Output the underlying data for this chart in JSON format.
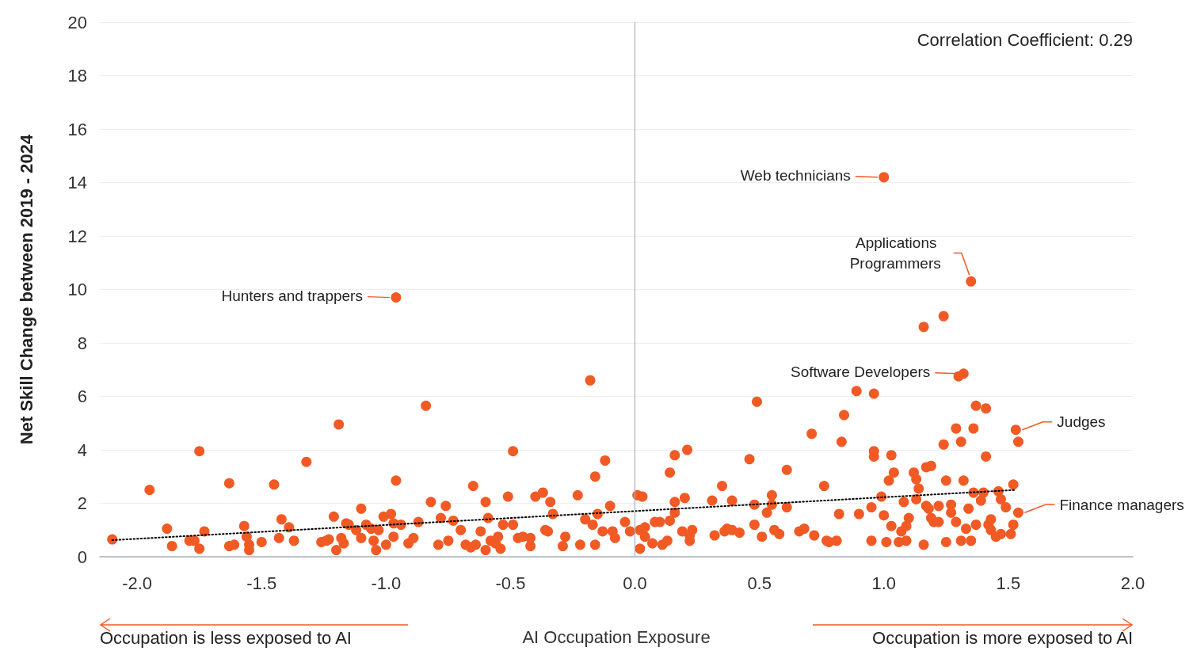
{
  "chart_data": {
    "type": "scatter",
    "xlabel": "AI Occupation Exposure",
    "ylabel": "Net Skill Change between 2019 - 2024",
    "xlim": [
      -2.15,
      2.0
    ],
    "xticks": [
      {
        "value": -2,
        "label": "-2.0"
      },
      {
        "value": -1.5,
        "label": "-1.5"
      },
      {
        "value": -1,
        "label": "-1.0"
      },
      {
        "value": -0.5,
        "label": "-0.5"
      },
      {
        "value": 0,
        "label": "0.0"
      },
      {
        "value": 0.5,
        "label": "0.5"
      },
      {
        "value": 1,
        "label": "1.0"
      },
      {
        "value": 1.5,
        "label": "1.5"
      },
      {
        "value": 2,
        "label": "2.0"
      }
    ],
    "ylim": [
      0,
      20
    ],
    "yticks": [
      0,
      2,
      4,
      6,
      8,
      10,
      12,
      14,
      16,
      18,
      20
    ],
    "grid": "y",
    "marker": "circle",
    "ref_lines": [
      {
        "axis": "x",
        "value": 0,
        "color": "#a9b0bd"
      }
    ],
    "annotations": [
      "Correlation Coefficient: 0.29",
      "Occupation is less exposed to AI",
      "Occupation is more exposed to AI",
      {
        "text": "Hunters and trappers",
        "x": -0.96,
        "y": 9.7
      },
      {
        "text": "Web technicians",
        "x": 1.0,
        "y": 14.2
      },
      {
        "text": "Applications Programmers",
        "x": 1.35,
        "y": 10.3
      },
      {
        "text": "Software Developers",
        "x": 1.32,
        "y": 6.85
      },
      {
        "text": "Judges",
        "x": 1.53,
        "y": 4.75
      },
      {
        "text": "Finance managers",
        "x": 1.54,
        "y": 1.65
      }
    ],
    "series": [
      {
        "type": "scatter",
        "color": "#f15a24",
        "x": [
          -2.1,
          -1.95,
          -1.88,
          -1.86,
          -1.79,
          -1.77,
          -1.75,
          -1.75,
          -1.73,
          -1.63,
          -1.63,
          -1.61,
          -1.57,
          -1.56,
          -1.55,
          -1.55,
          -1.5,
          -1.45,
          -1.43,
          -1.42,
          -1.39,
          -1.37,
          -1.32,
          -1.26,
          -1.24,
          -1.23,
          -1.21,
          -1.2,
          -1.19,
          -1.18,
          -1.17,
          -1.16,
          -1.15,
          -1.12,
          -1.1,
          -1.1,
          -1.08,
          -1.06,
          -1.05,
          -1.04,
          -1.03,
          -1.01,
          -1.0,
          -0.98,
          -0.97,
          -0.97,
          -0.96,
          -0.96,
          -0.94,
          -0.91,
          -0.89,
          -0.87,
          -0.84,
          -0.82,
          -0.79,
          -0.78,
          -0.76,
          -0.75,
          -0.73,
          -0.7,
          -0.68,
          -0.66,
          -0.65,
          -0.64,
          -0.62,
          -0.6,
          -0.6,
          -0.59,
          -0.58,
          -0.56,
          -0.55,
          -0.54,
          -0.53,
          -0.51,
          -0.49,
          -0.49,
          -0.47,
          -0.45,
          -0.42,
          -0.42,
          -0.4,
          -0.37,
          -0.36,
          -0.35,
          -0.34,
          -0.33,
          -0.29,
          -0.28,
          -0.23,
          -0.22,
          -0.2,
          -0.18,
          -0.17,
          -0.16,
          -0.16,
          -0.15,
          -0.13,
          -0.12,
          -0.1,
          -0.09,
          -0.08,
          -0.04,
          -0.02,
          0.01,
          0.02,
          0.02,
          0.03,
          0.04,
          0.04,
          0.07,
          0.08,
          0.1,
          0.11,
          0.13,
          0.14,
          0.14,
          0.16,
          0.16,
          0.16,
          0.19,
          0.2,
          0.21,
          0.22,
          0.22,
          0.23,
          0.31,
          0.32,
          0.35,
          0.36,
          0.37,
          0.39,
          0.39,
          0.42,
          0.46,
          0.48,
          0.48,
          0.49,
          0.51,
          0.53,
          0.55,
          0.55,
          0.56,
          0.58,
          0.61,
          0.61,
          0.66,
          0.68,
          0.71,
          0.72,
          0.76,
          0.77,
          0.78,
          0.81,
          0.82,
          0.83,
          0.84,
          0.89,
          0.9,
          0.95,
          0.95,
          0.96,
          0.96,
          0.96,
          0.99,
          1.0,
          1.0,
          1.01,
          1.02,
          1.03,
          1.03,
          1.04,
          1.06,
          1.07,
          1.08,
          1.09,
          1.09,
          1.1,
          1.12,
          1.13,
          1.13,
          1.14,
          1.16,
          1.16,
          1.17,
          1.17,
          1.18,
          1.19,
          1.19,
          1.2,
          1.22,
          1.22,
          1.24,
          1.24,
          1.25,
          1.25,
          1.27,
          1.27,
          1.29,
          1.29,
          1.3,
          1.31,
          1.31,
          1.32,
          1.32,
          1.33,
          1.34,
          1.35,
          1.35,
          1.36,
          1.36,
          1.37,
          1.37,
          1.39,
          1.4,
          1.41,
          1.41,
          1.42,
          1.43,
          1.43,
          1.45,
          1.46,
          1.47,
          1.47,
          1.49,
          1.51,
          1.52,
          1.52,
          1.53,
          1.54,
          1.54
        ],
        "values": [
          0.65,
          2.5,
          1.05,
          0.4,
          0.6,
          0.6,
          3.95,
          0.3,
          0.95,
          2.75,
          0.4,
          0.45,
          1.15,
          0.75,
          0.45,
          0.25,
          0.55,
          2.7,
          0.7,
          1.4,
          1.1,
          0.6,
          3.55,
          0.55,
          0.6,
          0.65,
          1.5,
          0.25,
          4.95,
          0.7,
          0.5,
          1.25,
          1.2,
          1.0,
          1.8,
          0.7,
          1.2,
          1.05,
          0.6,
          0.25,
          1.0,
          1.5,
          0.45,
          1.6,
          0.75,
          1.25,
          2.85,
          9.7,
          1.2,
          0.5,
          0.7,
          1.3,
          5.65,
          2.05,
          0.45,
          1.45,
          1.9,
          0.6,
          1.35,
          1.0,
          0.45,
          0.35,
          2.65,
          0.45,
          0.95,
          0.25,
          2.05,
          1.45,
          0.6,
          0.5,
          0.75,
          0.3,
          1.2,
          2.25,
          3.95,
          1.2,
          0.7,
          0.75,
          0.4,
          0.7,
          2.25,
          2.4,
          1.0,
          0.95,
          2.05,
          1.6,
          0.4,
          0.75,
          2.3,
          0.45,
          1.4,
          6.6,
          1.2,
          3.0,
          0.45,
          1.6,
          0.95,
          3.6,
          1.9,
          0.95,
          0.7,
          1.3,
          0.95,
          2.3,
          0.3,
          1.0,
          2.25,
          0.75,
          1.1,
          0.5,
          1.3,
          1.3,
          0.45,
          0.6,
          3.15,
          1.35,
          1.65,
          2.05,
          3.8,
          0.95,
          2.2,
          4.0,
          0.8,
          0.6,
          1.0,
          2.1,
          0.8,
          2.65,
          0.95,
          1.05,
          2.1,
          1.0,
          0.9,
          3.65,
          1.95,
          1.2,
          5.8,
          0.75,
          1.65,
          1.95,
          2.3,
          1.0,
          0.85,
          3.25,
          1.85,
          0.95,
          1.05,
          4.6,
          0.8,
          2.65,
          0.6,
          0.55,
          0.6,
          1.6,
          4.3,
          5.3,
          6.2,
          1.6,
          1.85,
          0.6,
          3.95,
          6.1,
          3.75,
          2.25,
          14.2,
          1.55,
          0.55,
          2.85,
          3.8,
          1.15,
          3.15,
          0.55,
          0.95,
          2.05,
          0.6,
          1.15,
          1.45,
          3.15,
          2.9,
          2.15,
          2.55,
          8.6,
          0.45,
          1.9,
          3.35,
          1.8,
          3.4,
          1.45,
          1.3,
          1.3,
          1.9,
          4.2,
          9.0,
          2.85,
          0.55,
          1.95,
          1.65,
          4.8,
          1.3,
          6.75,
          0.6,
          4.3,
          2.85,
          6.85,
          1.05,
          1.8,
          10.3,
          0.6,
          4.8,
          2.4,
          5.65,
          1.2,
          2.1,
          2.4,
          5.55,
          3.75,
          1.2,
          1.4,
          1.0,
          0.75,
          2.45,
          2.15,
          0.85,
          1.85,
          0.85,
          1.2,
          2.7,
          4.75,
          4.3,
          1.65
        ]
      },
      {
        "type": "line",
        "color": "#000000",
        "x": [
          -2.1,
          1.53
        ],
        "values": [
          0.62,
          2.5
        ],
        "line_style": "dotted",
        "marker": "none"
      }
    ]
  }
}
